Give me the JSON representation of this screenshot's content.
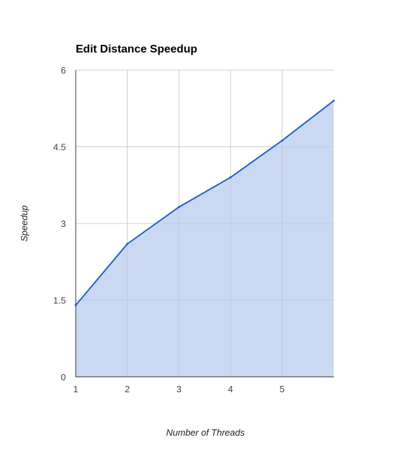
{
  "chart_data": {
    "type": "area",
    "title": "Edit Distance Speedup",
    "xlabel": "Number of Threads",
    "ylabel": "Speedup",
    "x": [
      1,
      2,
      3,
      4,
      5,
      6
    ],
    "series": [
      {
        "values": [
          1.4,
          2.6,
          3.32,
          3.9,
          4.62,
          5.4
        ]
      }
    ],
    "xlim": [
      1,
      6
    ],
    "ylim": [
      0,
      6
    ],
    "x_ticks": [
      "1",
      "2",
      "3",
      "4",
      "5"
    ],
    "y_ticks": [
      "0",
      "1.5",
      "3",
      "4.5",
      "6"
    ],
    "grid": true,
    "legend": "none",
    "colors": {
      "line": "#2160c4",
      "fill": "#b8cbed",
      "grid": "#cccccc",
      "axis": "#333333"
    }
  }
}
